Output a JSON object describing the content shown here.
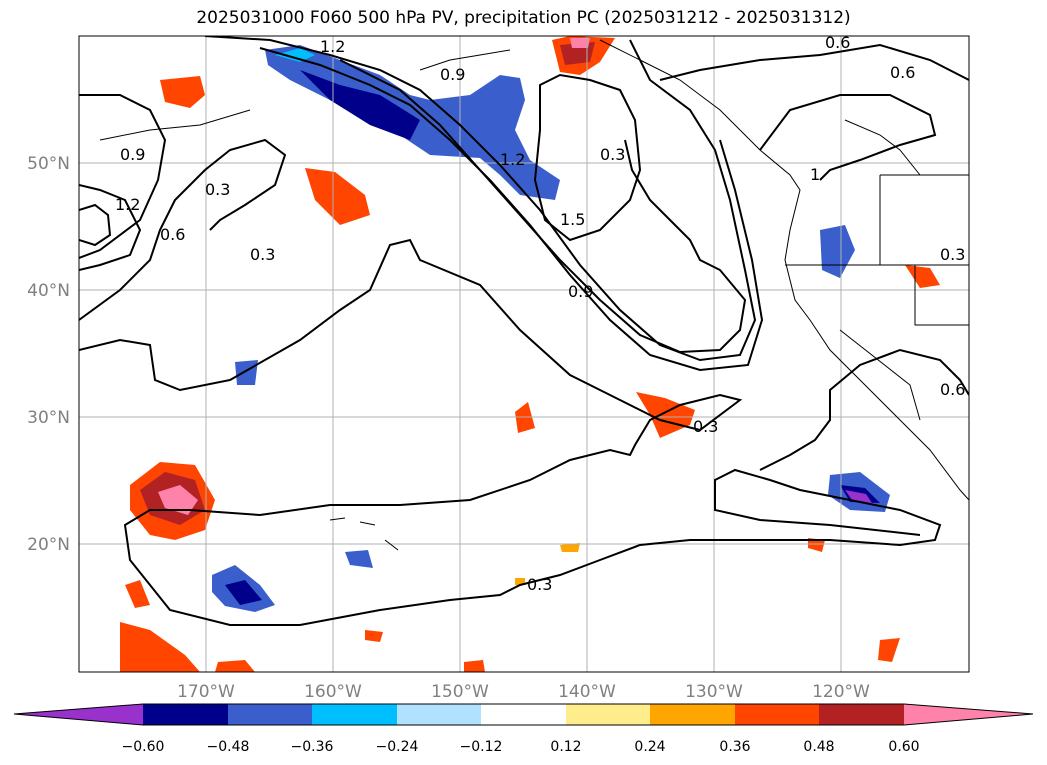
{
  "title": "2025031000 F060 500 hPa PV, precipitation PC (2025031212 - 2025031312)",
  "latitude_labels": [
    "50°N",
    "40°N",
    "30°N",
    "20°N"
  ],
  "longitude_labels": [
    "170°W",
    "160°W",
    "150°W",
    "140°W",
    "130°W",
    "120°W"
  ],
  "contour_labels": [
    "1.2",
    "0.9",
    "0.6",
    "0.3",
    "0.9",
    "1.2",
    "0.6",
    "0.6",
    "0.3",
    "1.2",
    "1.5",
    "0.9",
    "0.3",
    "0.3",
    "0.3",
    "0.6",
    "0.3",
    "1"
  ],
  "colorbar": {
    "ticks": [
      "−0.60",
      "−0.48",
      "−0.36",
      "−0.24",
      "−0.12",
      "0.12",
      "0.24",
      "0.36",
      "0.48",
      "0.60"
    ],
    "colors": [
      "#9932CC",
      "#00008B",
      "#3A5FCD",
      "#00BFFF",
      "#B0E2FF",
      "#FFFFFF",
      "#FFEC8B",
      "#FFA500",
      "#FF4500",
      "#B22222",
      "#FF82AB"
    ]
  }
}
